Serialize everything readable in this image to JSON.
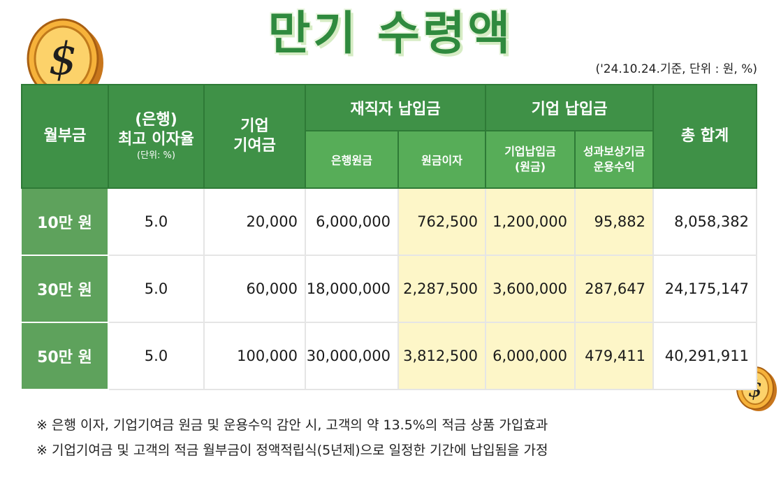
{
  "title": "만기 수령액",
  "basis": "('24.10.24.기준, 단위 : 원, %)",
  "header": {
    "monthly": "월부금",
    "rate_line1": "(은행)",
    "rate_line2": "최고 이자율",
    "rate_unit": "(단위: %)",
    "contrib_line1": "기업",
    "contrib_line2": "기여금",
    "employee_group": "재직자 납입금",
    "company_group": "기업 납입금",
    "total": "총 합계",
    "bank_principal": "은행원금",
    "principal_interest": "원금이자",
    "company_paid_line1": "기업납입금",
    "company_paid_line2": "(원금)",
    "reward_line1": "성과보상기금",
    "reward_line2": "운용수익"
  },
  "rows": [
    {
      "label": "10만 원",
      "rate": "5.0",
      "contribution": "20,000",
      "bank_principal": "6,000,000",
      "interest": "762,500",
      "company_principal": "1,200,000",
      "fund_return": "95,882",
      "total": "8,058,382"
    },
    {
      "label": "30만 원",
      "rate": "5.0",
      "contribution": "60,000",
      "bank_principal": "18,000,000",
      "interest": "2,287,500",
      "company_principal": "3,600,000",
      "fund_return": "287,647",
      "total": "24,175,147"
    },
    {
      "label": "50만 원",
      "rate": "5.0",
      "contribution": "100,000",
      "bank_principal": "30,000,000",
      "interest": "3,812,500",
      "company_principal": "6,000,000",
      "fund_return": "479,411",
      "total": "40,291,911"
    }
  ],
  "notes": [
    "※ 은행 이자, 기업기여금 원금 및 운용수익 감안 시, 고객의 약 13.5%의 적금 상품 가입효과",
    "※ 기업기여금 및 고객의 적금 월부금이 정액적립식(5년제)으로 일정한 기간에 납입됨을 가정"
  ],
  "icons": {
    "coin": "dollar-coin-icon"
  },
  "colors": {
    "header_green": "#3f9147",
    "subheader_green": "#57ad58",
    "row_label_green": "#5ea25c",
    "highlight": "#fdf6c8",
    "title_green": "#2f8a3e"
  }
}
